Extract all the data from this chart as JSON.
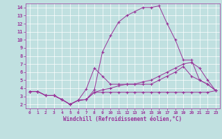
{
  "xlabel": "Windchill (Refroidissement éolien,°C)",
  "xlim": [
    -0.5,
    23.5
  ],
  "ylim": [
    1.5,
    14.5
  ],
  "xticks": [
    0,
    1,
    2,
    3,
    4,
    5,
    6,
    7,
    8,
    9,
    10,
    11,
    12,
    13,
    14,
    15,
    16,
    17,
    18,
    19,
    20,
    21,
    22,
    23
  ],
  "yticks": [
    2,
    3,
    4,
    5,
    6,
    7,
    8,
    9,
    10,
    11,
    12,
    13,
    14
  ],
  "bg_color": "#c0e0e0",
  "line_color": "#993399",
  "grid_color": "#ffffff",
  "lines": [
    {
      "x": [
        0,
        1,
        2,
        3,
        4,
        5,
        6,
        7,
        8,
        9,
        10,
        11,
        12,
        13,
        14,
        15,
        16,
        17,
        18,
        19,
        20,
        21,
        22,
        23
      ],
      "y": [
        3.6,
        3.6,
        3.1,
        3.1,
        2.6,
        2.0,
        2.5,
        2.6,
        3.8,
        8.5,
        10.5,
        12.2,
        13.0,
        13.5,
        14.0,
        14.0,
        14.2,
        12.0,
        10.0,
        7.5,
        7.5,
        5.0,
        4.5,
        3.7
      ]
    },
    {
      "x": [
        0,
        1,
        2,
        3,
        4,
        5,
        6,
        7,
        8,
        9,
        10,
        11,
        12,
        13,
        14,
        15,
        16,
        17,
        18,
        19,
        20,
        21,
        22,
        23
      ],
      "y": [
        3.6,
        3.6,
        3.1,
        3.1,
        2.6,
        2.0,
        2.5,
        3.9,
        6.5,
        5.5,
        4.5,
        4.5,
        4.5,
        4.5,
        4.5,
        4.5,
        5.0,
        5.5,
        6.0,
        6.7,
        5.5,
        5.0,
        4.5,
        3.7
      ]
    },
    {
      "x": [
        0,
        1,
        2,
        3,
        4,
        5,
        6,
        7,
        8,
        9,
        10,
        11,
        12,
        13,
        14,
        15,
        16,
        17,
        18,
        19,
        20,
        21,
        22,
        23
      ],
      "y": [
        3.6,
        3.6,
        3.1,
        3.1,
        2.6,
        2.0,
        2.5,
        2.6,
        3.5,
        3.8,
        4.0,
        4.3,
        4.5,
        4.5,
        4.8,
        5.0,
        5.5,
        6.0,
        6.5,
        7.0,
        7.2,
        6.5,
        5.0,
        3.7
      ]
    },
    {
      "x": [
        0,
        1,
        2,
        3,
        4,
        5,
        6,
        7,
        8,
        9,
        10,
        11,
        12,
        13,
        14,
        15,
        16,
        17,
        18,
        19,
        20,
        21,
        22,
        23
      ],
      "y": [
        3.6,
        3.6,
        3.1,
        3.1,
        2.6,
        2.0,
        2.5,
        2.6,
        3.5,
        3.5,
        3.5,
        3.5,
        3.5,
        3.5,
        3.5,
        3.5,
        3.5,
        3.5,
        3.5,
        3.5,
        3.5,
        3.5,
        3.5,
        3.7
      ]
    }
  ]
}
